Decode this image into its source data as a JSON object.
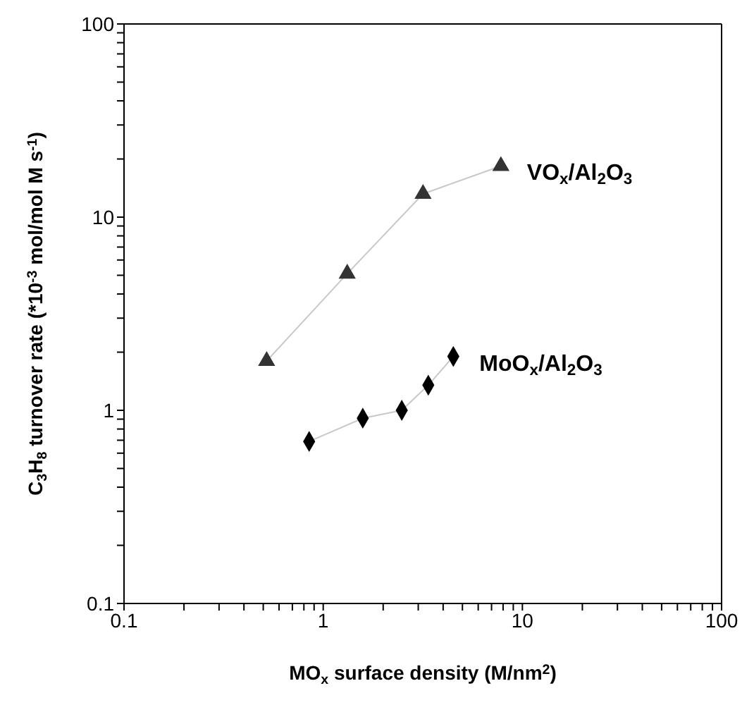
{
  "chart_data": {
    "type": "line",
    "xlabel": "MO$_{x}$ surface density (M/nm$^{2}$)",
    "ylabel": "C$_{3}$H$_{8}$ turnover rate (*10$^{-3}$ mol/mol M s$^{-1}$)",
    "log": "xy",
    "xlim": [
      0.1,
      100
    ],
    "ylim": [
      0.1,
      100
    ],
    "xticks": [
      0.1,
      {
        "value": 0.2,
        "label": null
      },
      {
        "value": 0.3,
        "label": null
      },
      {
        "value": 0.4,
        "label": null
      },
      {
        "value": 0.5,
        "label": null
      },
      {
        "value": 0.6,
        "label": null
      },
      {
        "value": 0.7,
        "label": null
      },
      {
        "value": 0.8,
        "label": null
      },
      {
        "value": 0.9,
        "label": null
      },
      1,
      {
        "value": 2,
        "label": null
      },
      {
        "value": 3,
        "label": null
      },
      {
        "value": 4,
        "label": null
      },
      {
        "value": 5,
        "label": null
      },
      {
        "value": 6,
        "label": null
      },
      {
        "value": 7,
        "label": null
      },
      {
        "value": 8,
        "label": null
      },
      {
        "value": 9,
        "label": null
      },
      10,
      {
        "value": 20,
        "label": null
      },
      {
        "value": 30,
        "label": null
      },
      {
        "value": 40,
        "label": null
      },
      {
        "value": 50,
        "label": null
      },
      {
        "value": 60,
        "label": null
      },
      {
        "value": 70,
        "label": null
      },
      {
        "value": 80,
        "label": null
      },
      {
        "value": 90,
        "label": null
      },
      100
    ],
    "yticks": [
      0.1,
      {
        "value": 0.2,
        "label": null
      },
      {
        "value": 0.3,
        "label": null
      },
      {
        "value": 0.4,
        "label": null
      },
      {
        "value": 0.5,
        "label": null
      },
      {
        "value": 0.6,
        "label": null
      },
      {
        "value": 0.7,
        "label": null
      },
      {
        "value": 0.8,
        "label": null
      },
      {
        "value": 0.9,
        "label": null
      },
      1,
      {
        "value": 2,
        "label": null
      },
      {
        "value": 3,
        "label": null
      },
      {
        "value": 4,
        "label": null
      },
      {
        "value": 5,
        "label": null
      },
      {
        "value": 6,
        "label": null
      },
      {
        "value": 7,
        "label": null
      },
      {
        "value": 8,
        "label": null
      },
      {
        "value": 9,
        "label": null
      },
      10,
      {
        "value": 20,
        "label": null
      },
      {
        "value": 30,
        "label": null
      },
      {
        "value": 40,
        "label": null
      },
      {
        "value": 50,
        "label": null
      },
      {
        "value": 60,
        "label": null
      },
      {
        "value": 70,
        "label": null
      },
      {
        "value": 80,
        "label": null
      },
      {
        "value": 90,
        "label": null
      },
      100
    ],
    "series": [
      {
        "name": "VO$_{x}$/Al$_{2}$O$_{3}$",
        "color": "#333333",
        "marker": "triangle",
        "x": [
          0.52,
          1.32,
          3.17,
          7.8
        ],
        "values": [
          1.8,
          5.1,
          13.2,
          18.4
        ]
      },
      {
        "name": "MoO$_{x}$/Al$_{2}$O$_{3}$",
        "color": "#000000",
        "marker": "diamond",
        "x": [
          0.85,
          1.58,
          2.48,
          3.37,
          4.5
        ],
        "values": [
          0.69,
          0.91,
          1.0,
          1.35,
          1.9
        ]
      }
    ]
  }
}
